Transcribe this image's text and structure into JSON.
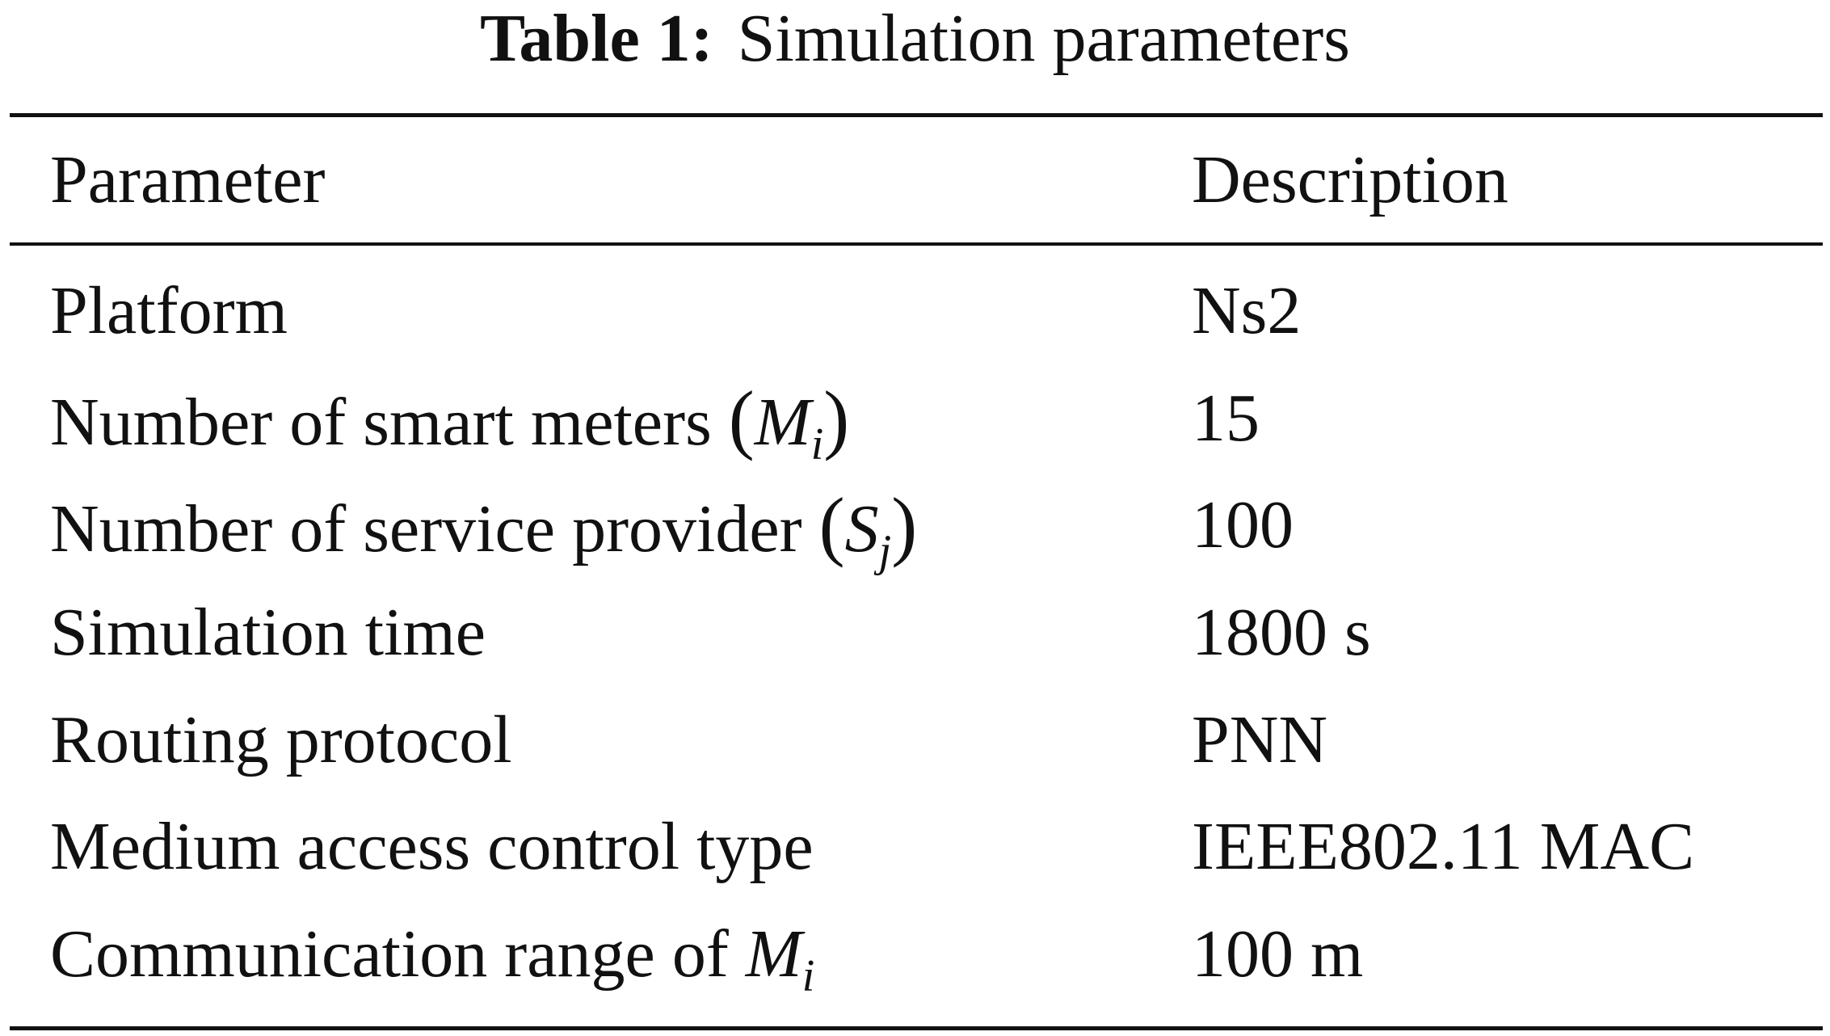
{
  "caption": {
    "label": "Table 1:",
    "text": "Simulation parameters"
  },
  "table": {
    "headers": {
      "parameter": "Parameter",
      "description": "Description"
    },
    "rows": [
      {
        "parameter": "Platform",
        "description": "Ns2"
      },
      {
        "parameter": "Number of smart meters",
        "symbol": "M",
        "subscript": "i",
        "open": "(",
        "close": ")",
        "description": "15"
      },
      {
        "parameter": "Number of service provider",
        "symbol": "S",
        "subscript": "j",
        "open": "(",
        "close": ")",
        "description": "100"
      },
      {
        "parameter": "Simulation time",
        "description": "1800 s"
      },
      {
        "parameter": "Routing protocol",
        "description": "PNN"
      },
      {
        "parameter": "Medium access control type",
        "description": "IEEE802.11 MAC"
      },
      {
        "parameter": "Communication range of",
        "symbol": "M",
        "subscript": "i",
        "description": "100 m"
      }
    ]
  }
}
